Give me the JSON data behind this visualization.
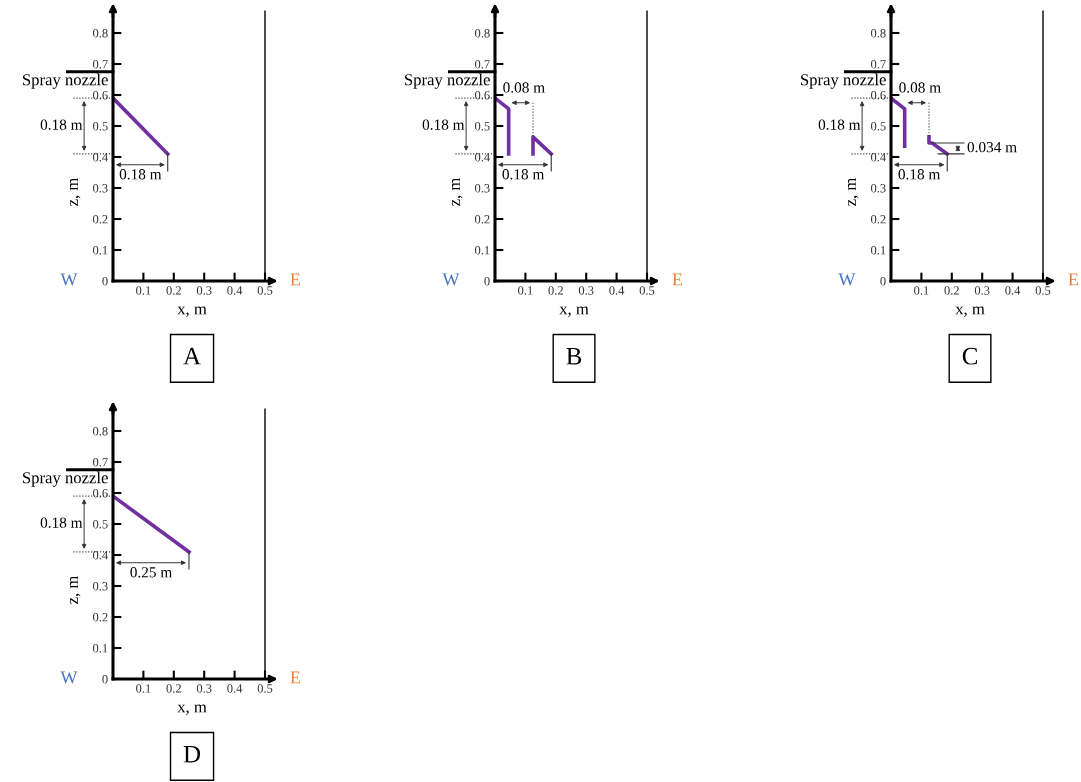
{
  "chart_data": [
    {
      "type": "line",
      "title": "A",
      "xlabel": "x, m",
      "ylabel": "z, m",
      "xlim": [
        0,
        0.52
      ],
      "ylim": [
        0,
        0.87
      ],
      "xticks": [
        0.1,
        0.2,
        0.3,
        0.4,
        0.5
      ],
      "yticks": [
        0,
        0.1,
        0.2,
        0.3,
        0.4,
        0.5,
        0.6,
        0.7,
        0.8
      ],
      "grid": false,
      "legend": false,
      "marker": "none",
      "line_style": "solid",
      "series": [
        {
          "color": "#7030a0",
          "x": [
            0,
            0.18
          ],
          "values": [
            0.59,
            0.41
          ]
        }
      ],
      "ref_lines": [
        {
          "axis": "x",
          "value": 0.5,
          "color": "#000000"
        }
      ],
      "annotations": [
        "Spray nozzle",
        "W",
        "E",
        "0.18 m",
        "0.18 m"
      ]
    },
    {
      "type": "line",
      "title": "B",
      "xlabel": "x, m",
      "ylabel": "z, m",
      "xlim": [
        0,
        0.52
      ],
      "ylim": [
        0,
        0.87
      ],
      "xticks": [
        0.1,
        0.2,
        0.3,
        0.4,
        0.5
      ],
      "yticks": [
        0,
        0.1,
        0.2,
        0.3,
        0.4,
        0.5,
        0.6,
        0.7,
        0.8
      ],
      "grid": false,
      "legend": false,
      "marker": "none",
      "line_style": "solid",
      "series": [
        {
          "color": "#7030a0",
          "x": [
            0,
            0.045,
            0.045
          ],
          "values": [
            0.59,
            0.555,
            0.41
          ]
        },
        {
          "color": "#7030a0",
          "x": [
            0.125,
            0.125,
            0.185
          ],
          "values": [
            0.41,
            0.465,
            0.41
          ]
        }
      ],
      "ref_lines": [
        {
          "axis": "x",
          "value": 0.5,
          "color": "#000000"
        }
      ],
      "annotations": [
        "Spray nozzle",
        "W",
        "E",
        "0.18 m",
        "0.18 m",
        "0.08 m"
      ]
    },
    {
      "type": "line",
      "title": "C",
      "xlabel": "x, m",
      "ylabel": "z, m",
      "xlim": [
        0,
        0.52
      ],
      "ylim": [
        0,
        0.87
      ],
      "xticks": [
        0.1,
        0.2,
        0.3,
        0.4,
        0.5
      ],
      "yticks": [
        0,
        0.1,
        0.2,
        0.3,
        0.4,
        0.5,
        0.6,
        0.7,
        0.8
      ],
      "grid": false,
      "legend": false,
      "marker": "none",
      "line_style": "solid",
      "series": [
        {
          "color": "#7030a0",
          "x": [
            0,
            0.045,
            0.045
          ],
          "values": [
            0.59,
            0.555,
            0.435
          ]
        },
        {
          "color": "#7030a0",
          "x": [
            0.125,
            0.125,
            0.135,
            0.185
          ],
          "values": [
            0.465,
            0.445,
            0.445,
            0.41
          ]
        }
      ],
      "ref_lines": [
        {
          "axis": "x",
          "value": 0.5,
          "color": "#000000"
        }
      ],
      "annotations": [
        "Spray nozzle",
        "W",
        "E",
        "0.18 m",
        "0.18 m",
        "0.08 m",
        "0.034 m"
      ]
    },
    {
      "type": "line",
      "title": "D",
      "xlabel": "x, m",
      "ylabel": "z, m",
      "xlim": [
        0,
        0.52
      ],
      "ylim": [
        0,
        0.87
      ],
      "xticks": [
        0.1,
        0.2,
        0.3,
        0.4,
        0.5
      ],
      "yticks": [
        0,
        0.1,
        0.2,
        0.3,
        0.4,
        0.5,
        0.6,
        0.7,
        0.8
      ],
      "grid": false,
      "legend": false,
      "marker": "none",
      "line_style": "solid",
      "series": [
        {
          "color": "#7030a0",
          "x": [
            0,
            0.25
          ],
          "values": [
            0.59,
            0.41
          ]
        }
      ],
      "ref_lines": [
        {
          "axis": "x",
          "value": 0.5,
          "color": "#000000"
        }
      ],
      "annotations": [
        "Spray nozzle",
        "W",
        "E",
        "0.18 m",
        "0.25 m"
      ]
    }
  ]
}
